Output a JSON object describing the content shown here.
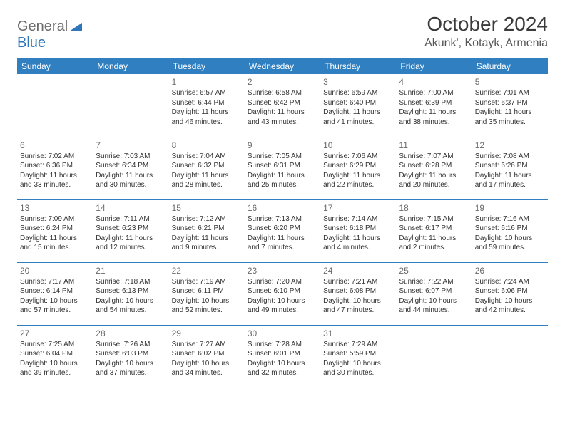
{
  "logo": {
    "part1": "General",
    "part2": "Blue"
  },
  "title": "October 2024",
  "location": "Akunk', Kotayk, Armenia",
  "colors": {
    "header_bg": "#2f7fc1",
    "header_fg": "#ffffff",
    "border": "#2f7fc1",
    "text": "#3a3a3a",
    "daynum": "#6a6a6a",
    "logo_gray": "#6b6b6b",
    "logo_blue": "#2f76ba",
    "bg": "#ffffff"
  },
  "weekdays": [
    "Sunday",
    "Monday",
    "Tuesday",
    "Wednesday",
    "Thursday",
    "Friday",
    "Saturday"
  ],
  "weeks": [
    [
      null,
      null,
      {
        "day": "1",
        "sunrise": "Sunrise: 6:57 AM",
        "sunset": "Sunset: 6:44 PM",
        "daylight": "Daylight: 11 hours and 46 minutes."
      },
      {
        "day": "2",
        "sunrise": "Sunrise: 6:58 AM",
        "sunset": "Sunset: 6:42 PM",
        "daylight": "Daylight: 11 hours and 43 minutes."
      },
      {
        "day": "3",
        "sunrise": "Sunrise: 6:59 AM",
        "sunset": "Sunset: 6:40 PM",
        "daylight": "Daylight: 11 hours and 41 minutes."
      },
      {
        "day": "4",
        "sunrise": "Sunrise: 7:00 AM",
        "sunset": "Sunset: 6:39 PM",
        "daylight": "Daylight: 11 hours and 38 minutes."
      },
      {
        "day": "5",
        "sunrise": "Sunrise: 7:01 AM",
        "sunset": "Sunset: 6:37 PM",
        "daylight": "Daylight: 11 hours and 35 minutes."
      }
    ],
    [
      {
        "day": "6",
        "sunrise": "Sunrise: 7:02 AM",
        "sunset": "Sunset: 6:36 PM",
        "daylight": "Daylight: 11 hours and 33 minutes."
      },
      {
        "day": "7",
        "sunrise": "Sunrise: 7:03 AM",
        "sunset": "Sunset: 6:34 PM",
        "daylight": "Daylight: 11 hours and 30 minutes."
      },
      {
        "day": "8",
        "sunrise": "Sunrise: 7:04 AM",
        "sunset": "Sunset: 6:32 PM",
        "daylight": "Daylight: 11 hours and 28 minutes."
      },
      {
        "day": "9",
        "sunrise": "Sunrise: 7:05 AM",
        "sunset": "Sunset: 6:31 PM",
        "daylight": "Daylight: 11 hours and 25 minutes."
      },
      {
        "day": "10",
        "sunrise": "Sunrise: 7:06 AM",
        "sunset": "Sunset: 6:29 PM",
        "daylight": "Daylight: 11 hours and 22 minutes."
      },
      {
        "day": "11",
        "sunrise": "Sunrise: 7:07 AM",
        "sunset": "Sunset: 6:28 PM",
        "daylight": "Daylight: 11 hours and 20 minutes."
      },
      {
        "day": "12",
        "sunrise": "Sunrise: 7:08 AM",
        "sunset": "Sunset: 6:26 PM",
        "daylight": "Daylight: 11 hours and 17 minutes."
      }
    ],
    [
      {
        "day": "13",
        "sunrise": "Sunrise: 7:09 AM",
        "sunset": "Sunset: 6:24 PM",
        "daylight": "Daylight: 11 hours and 15 minutes."
      },
      {
        "day": "14",
        "sunrise": "Sunrise: 7:11 AM",
        "sunset": "Sunset: 6:23 PM",
        "daylight": "Daylight: 11 hours and 12 minutes."
      },
      {
        "day": "15",
        "sunrise": "Sunrise: 7:12 AM",
        "sunset": "Sunset: 6:21 PM",
        "daylight": "Daylight: 11 hours and 9 minutes."
      },
      {
        "day": "16",
        "sunrise": "Sunrise: 7:13 AM",
        "sunset": "Sunset: 6:20 PM",
        "daylight": "Daylight: 11 hours and 7 minutes."
      },
      {
        "day": "17",
        "sunrise": "Sunrise: 7:14 AM",
        "sunset": "Sunset: 6:18 PM",
        "daylight": "Daylight: 11 hours and 4 minutes."
      },
      {
        "day": "18",
        "sunrise": "Sunrise: 7:15 AM",
        "sunset": "Sunset: 6:17 PM",
        "daylight": "Daylight: 11 hours and 2 minutes."
      },
      {
        "day": "19",
        "sunrise": "Sunrise: 7:16 AM",
        "sunset": "Sunset: 6:16 PM",
        "daylight": "Daylight: 10 hours and 59 minutes."
      }
    ],
    [
      {
        "day": "20",
        "sunrise": "Sunrise: 7:17 AM",
        "sunset": "Sunset: 6:14 PM",
        "daylight": "Daylight: 10 hours and 57 minutes."
      },
      {
        "day": "21",
        "sunrise": "Sunrise: 7:18 AM",
        "sunset": "Sunset: 6:13 PM",
        "daylight": "Daylight: 10 hours and 54 minutes."
      },
      {
        "day": "22",
        "sunrise": "Sunrise: 7:19 AM",
        "sunset": "Sunset: 6:11 PM",
        "daylight": "Daylight: 10 hours and 52 minutes."
      },
      {
        "day": "23",
        "sunrise": "Sunrise: 7:20 AM",
        "sunset": "Sunset: 6:10 PM",
        "daylight": "Daylight: 10 hours and 49 minutes."
      },
      {
        "day": "24",
        "sunrise": "Sunrise: 7:21 AM",
        "sunset": "Sunset: 6:08 PM",
        "daylight": "Daylight: 10 hours and 47 minutes."
      },
      {
        "day": "25",
        "sunrise": "Sunrise: 7:22 AM",
        "sunset": "Sunset: 6:07 PM",
        "daylight": "Daylight: 10 hours and 44 minutes."
      },
      {
        "day": "26",
        "sunrise": "Sunrise: 7:24 AM",
        "sunset": "Sunset: 6:06 PM",
        "daylight": "Daylight: 10 hours and 42 minutes."
      }
    ],
    [
      {
        "day": "27",
        "sunrise": "Sunrise: 7:25 AM",
        "sunset": "Sunset: 6:04 PM",
        "daylight": "Daylight: 10 hours and 39 minutes."
      },
      {
        "day": "28",
        "sunrise": "Sunrise: 7:26 AM",
        "sunset": "Sunset: 6:03 PM",
        "daylight": "Daylight: 10 hours and 37 minutes."
      },
      {
        "day": "29",
        "sunrise": "Sunrise: 7:27 AM",
        "sunset": "Sunset: 6:02 PM",
        "daylight": "Daylight: 10 hours and 34 minutes."
      },
      {
        "day": "30",
        "sunrise": "Sunrise: 7:28 AM",
        "sunset": "Sunset: 6:01 PM",
        "daylight": "Daylight: 10 hours and 32 minutes."
      },
      {
        "day": "31",
        "sunrise": "Sunrise: 7:29 AM",
        "sunset": "Sunset: 5:59 PM",
        "daylight": "Daylight: 10 hours and 30 minutes."
      },
      null,
      null
    ]
  ]
}
